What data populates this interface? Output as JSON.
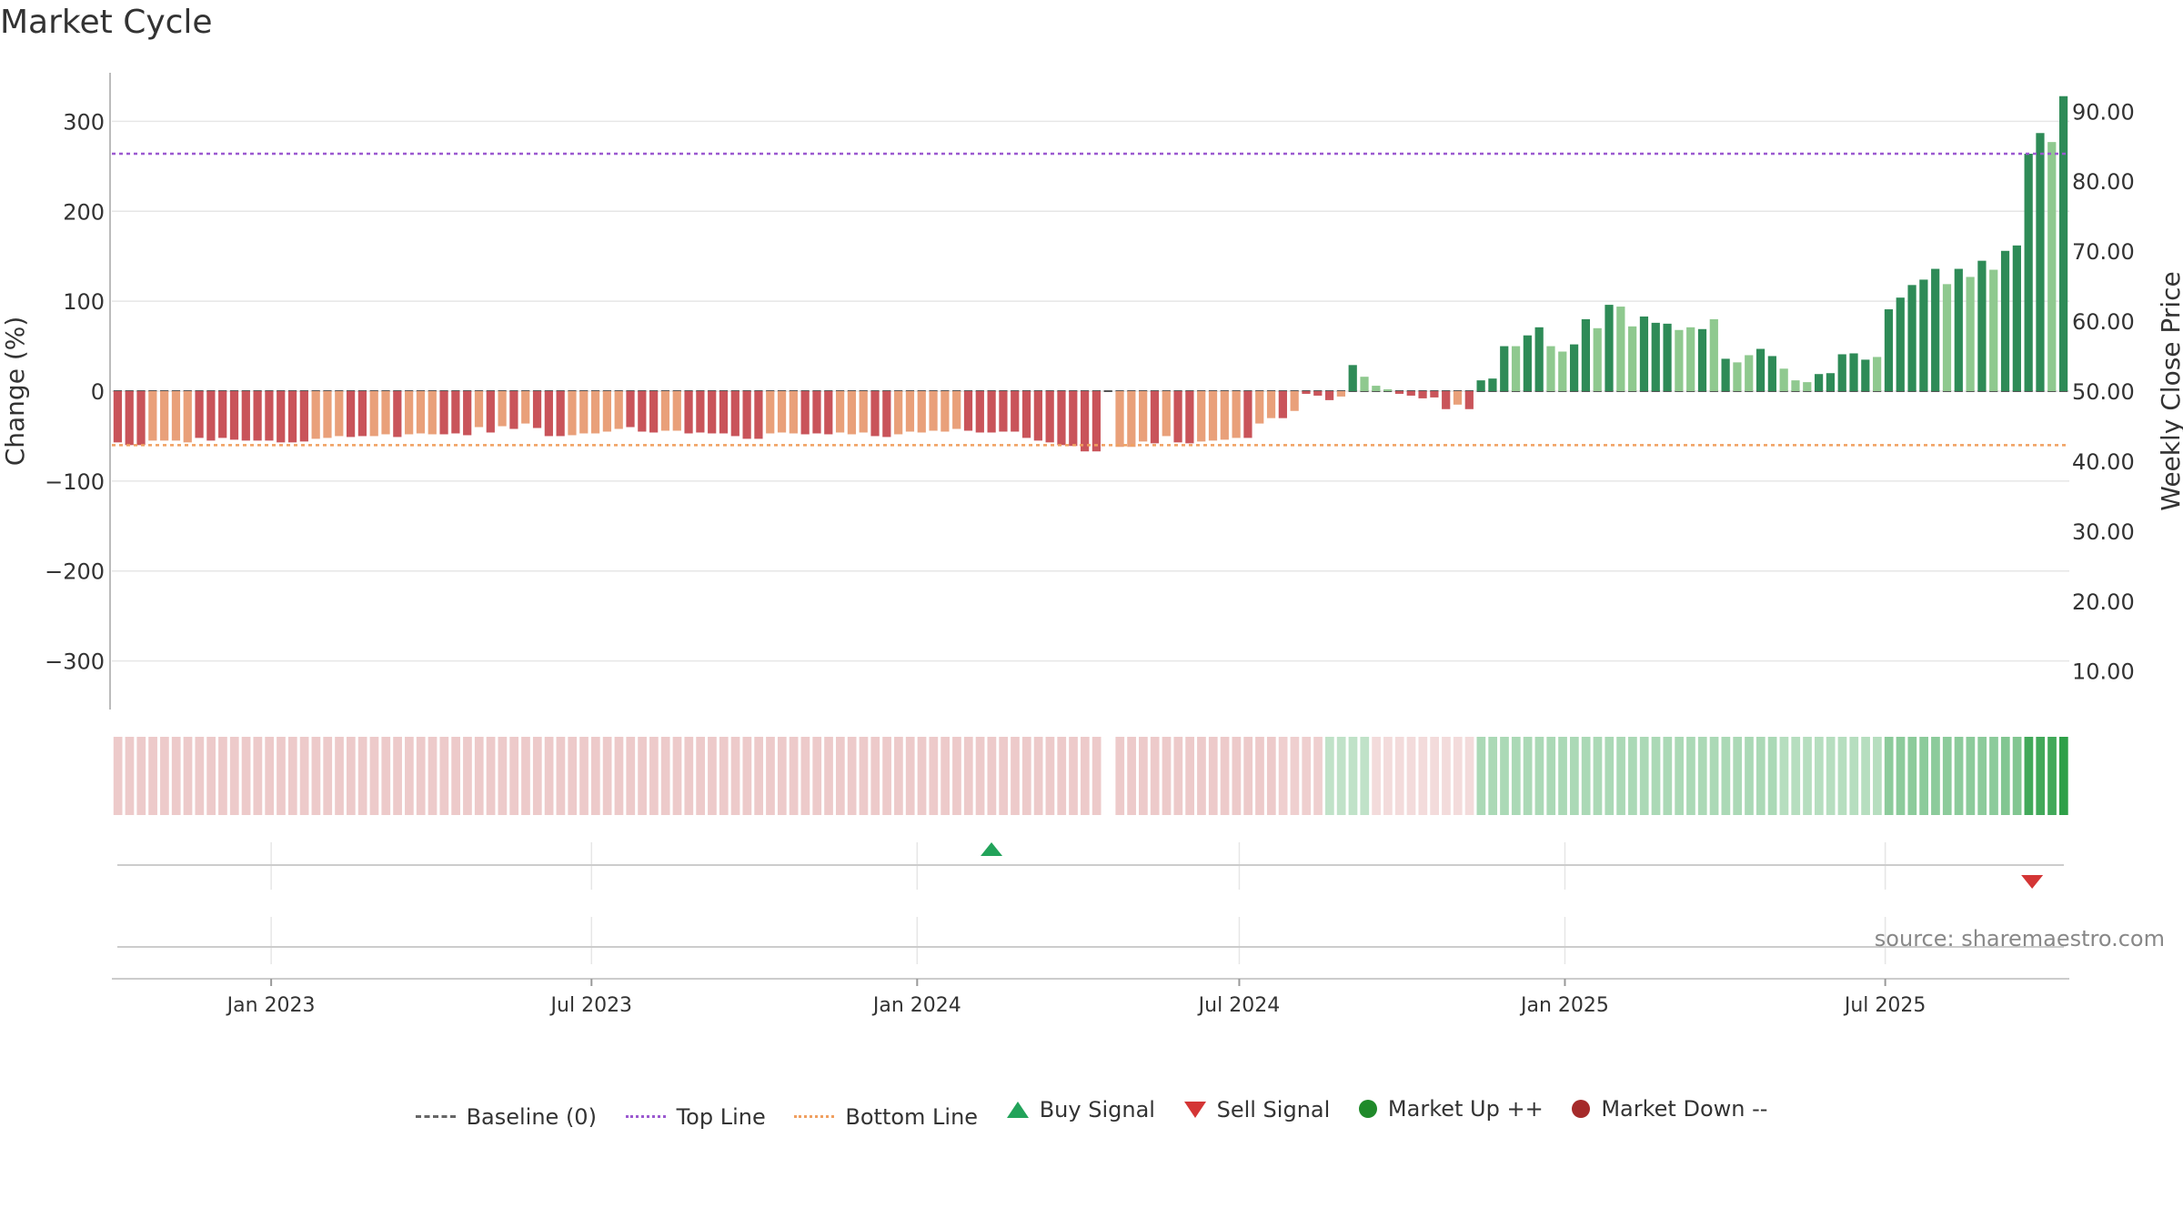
{
  "title": "Market Cycle",
  "source": "source: sharemaestro.com",
  "colors": {
    "accent_top": "#9b59d0",
    "accent_bottom": "#f0a060",
    "up_dark": "#2e8b57",
    "up_light": "#8fc98f",
    "down_dark": "#c9545a",
    "down_light": "#e9a07a",
    "buy": "#22a35a",
    "sell": "#d43535",
    "market_up": "#1f8a2a",
    "market_down": "#a52a2a"
  },
  "legend": [
    {
      "label": "Baseline (0)",
      "icon": "dashed-line"
    },
    {
      "label": "Top Line",
      "icon": "dotted-line"
    },
    {
      "label": "Bottom Line",
      "icon": "dotted-line"
    },
    {
      "label": "Buy Signal",
      "icon": "triangle-up"
    },
    {
      "label": "Sell Signal",
      "icon": "triangle-down"
    },
    {
      "label": "Market Up ++",
      "icon": "dot"
    },
    {
      "label": "Market Down --",
      "icon": "dot"
    }
  ],
  "chart_data": {
    "type": "bar",
    "title": "Market Cycle",
    "ylabel": "Change (%)",
    "y2label": "Weekly Close Price",
    "ylim": [
      -355,
      355
    ],
    "y2lim": [
      4.5,
      95.5
    ],
    "yticks": [
      300,
      200,
      100,
      0,
      -100,
      -200,
      -300
    ],
    "ytick_labels": [
      "300",
      "200",
      "100",
      "0",
      "−100",
      "−200",
      "−300"
    ],
    "y2ticks": [
      90,
      80,
      70,
      60,
      50,
      40,
      30,
      20,
      10
    ],
    "y2tick_labels": [
      "90.00",
      "80.00",
      "70.00",
      "60.00",
      "50.00",
      "40.00",
      "30.00",
      "20.00",
      "10.00"
    ],
    "x_start": "2022-10-03",
    "x_end": "2025-10-13",
    "xticks": [
      "2023-01-01",
      "2023-07-01",
      "2024-01-01",
      "2024-07-01",
      "2025-01-01",
      "2025-07-01"
    ],
    "xtick_labels": [
      "Jan 2023",
      "Jul 2023",
      "Jan 2024",
      "Jul 2024",
      "Jan 2025",
      "Jul 2025"
    ],
    "top_line": 264,
    "bottom_line": -60,
    "baseline": 0,
    "grid": true,
    "legend_position": "bottom",
    "buy_signals": [
      "2024-02-12"
    ],
    "sell_signals": [
      "2025-09-22"
    ],
    "bars_start": "2022-10-03",
    "bar_interval_days": 7,
    "gap_weeks": [
      72
    ],
    "change": [
      -57,
      -60,
      -60,
      -55,
      -55,
      -55,
      -57,
      -52,
      -55,
      -52,
      -54,
      -55,
      -55,
      -55,
      -57,
      -57,
      -56,
      -53,
      -52,
      -50,
      -51,
      -50,
      -50,
      -48,
      -51,
      -48,
      -47,
      -48,
      -48,
      -47,
      -49,
      -40,
      -46,
      -39,
      -42,
      -36,
      -41,
      -50,
      -50,
      -49,
      -47,
      -47,
      -45,
      -42,
      -40,
      -45,
      -46,
      -44,
      -44,
      -47,
      -46,
      -47,
      -47,
      -50,
      -53,
      -53,
      -47,
      -46,
      -47,
      -48,
      -47,
      -48,
      -46,
      -48,
      -46,
      -50,
      -51,
      -48,
      -45,
      -46,
      -44,
      -45,
      -42,
      -44,
      -46,
      -46,
      -45,
      -45,
      -52,
      -55,
      -57,
      -60,
      -61,
      -67,
      -67,
      0,
      -62,
      -62,
      -56,
      -58,
      -50,
      -57,
      -58,
      -56,
      -55,
      -54,
      -52,
      -52,
      -36,
      -30,
      -30,
      -22,
      -3,
      -5,
      -10,
      -6,
      29,
      16,
      6,
      2,
      -3,
      -5,
      -8,
      -7,
      -20,
      -15,
      -20,
      12,
      14,
      50,
      50,
      62,
      71,
      50,
      44,
      52,
      80,
      70,
      96,
      94,
      72,
      83,
      76,
      75,
      68,
      71,
      69,
      80,
      36,
      32,
      40,
      47,
      39,
      25,
      12,
      10,
      19,
      20,
      41,
      42,
      35,
      38,
      91,
      104,
      118,
      124,
      136,
      119,
      136,
      127,
      145,
      135,
      156,
      162,
      264,
      287,
      277,
      328
    ],
    "change_shade": [
      0,
      0,
      0,
      1,
      1,
      1,
      1,
      0,
      0,
      0,
      0,
      0,
      0,
      0,
      0,
      0,
      0,
      1,
      1,
      1,
      0,
      0,
      1,
      1,
      0,
      1,
      1,
      1,
      0,
      0,
      0,
      1,
      0,
      1,
      0,
      1,
      0,
      0,
      0,
      1,
      1,
      1,
      1,
      1,
      0,
      0,
      0,
      1,
      1,
      0,
      0,
      0,
      0,
      0,
      0,
      0,
      1,
      1,
      1,
      0,
      0,
      0,
      1,
      1,
      1,
      0,
      0,
      1,
      1,
      1,
      1,
      1,
      1,
      0,
      0,
      0,
      0,
      0,
      0,
      0,
      0,
      0,
      0,
      0,
      0,
      0,
      1,
      1,
      1,
      0,
      1,
      0,
      0,
      1,
      1,
      1,
      1,
      0,
      1,
      1,
      0,
      1,
      0,
      0,
      0,
      1,
      0,
      1,
      1,
      1,
      0,
      0,
      0,
      0,
      0,
      1,
      0,
      0,
      0,
      0,
      1,
      0,
      0,
      1,
      1,
      0,
      0,
      1,
      0,
      1,
      1,
      0,
      0,
      0,
      1,
      1,
      0,
      1,
      0,
      1,
      1,
      0,
      0,
      1,
      1,
      1,
      0,
      0,
      0,
      0,
      0,
      1,
      0,
      0,
      0,
      0,
      0,
      1,
      0,
      1,
      0,
      1,
      0,
      0,
      0,
      0,
      1,
      0
    ],
    "heat_level": [
      -0.45,
      -0.45,
      -0.45,
      -0.45,
      -0.45,
      -0.45,
      -0.45,
      -0.45,
      -0.45,
      -0.45,
      -0.45,
      -0.45,
      -0.45,
      -0.45,
      -0.45,
      -0.45,
      -0.45,
      -0.45,
      -0.45,
      -0.45,
      -0.45,
      -0.45,
      -0.45,
      -0.45,
      -0.45,
      -0.45,
      -0.45,
      -0.45,
      -0.45,
      -0.45,
      -0.45,
      -0.45,
      -0.45,
      -0.45,
      -0.45,
      -0.45,
      -0.45,
      -0.45,
      -0.45,
      -0.45,
      -0.45,
      -0.45,
      -0.45,
      -0.45,
      -0.45,
      -0.45,
      -0.45,
      -0.45,
      -0.45,
      -0.45,
      -0.45,
      -0.45,
      -0.45,
      -0.45,
      -0.45,
      -0.45,
      -0.45,
      -0.45,
      -0.45,
      -0.45,
      -0.45,
      -0.45,
      -0.45,
      -0.45,
      -0.45,
      -0.45,
      -0.45,
      -0.45,
      -0.45,
      -0.45,
      -0.45,
      -0.45,
      -0.45,
      -0.45,
      -0.45,
      -0.45,
      -0.45,
      -0.45,
      -0.45,
      -0.45,
      -0.45,
      -0.45,
      -0.45,
      -0.45,
      -0.45,
      0,
      -0.45,
      -0.45,
      -0.45,
      -0.45,
      -0.45,
      -0.45,
      -0.45,
      -0.45,
      -0.45,
      -0.45,
      -0.45,
      -0.45,
      -0.45,
      -0.45,
      -0.4,
      -0.4,
      -0.4,
      -0.4,
      0.3,
      0.3,
      0.3,
      0.3,
      -0.3,
      -0.3,
      -0.3,
      -0.3,
      -0.3,
      -0.3,
      -0.3,
      -0.3,
      -0.3,
      0.4,
      0.4,
      0.4,
      0.4,
      0.4,
      0.4,
      0.4,
      0.4,
      0.4,
      0.4,
      0.4,
      0.4,
      0.4,
      0.4,
      0.4,
      0.4,
      0.4,
      0.4,
      0.4,
      0.4,
      0.4,
      0.4,
      0.4,
      0.4,
      0.4,
      0.4,
      0.35,
      0.35,
      0.35,
      0.35,
      0.35,
      0.35,
      0.35,
      0.35,
      0.35,
      0.55,
      0.55,
      0.55,
      0.55,
      0.55,
      0.55,
      0.55,
      0.55,
      0.55,
      0.55,
      0.6,
      0.6,
      0.9,
      0.9,
      0.9,
      1.0
    ]
  }
}
